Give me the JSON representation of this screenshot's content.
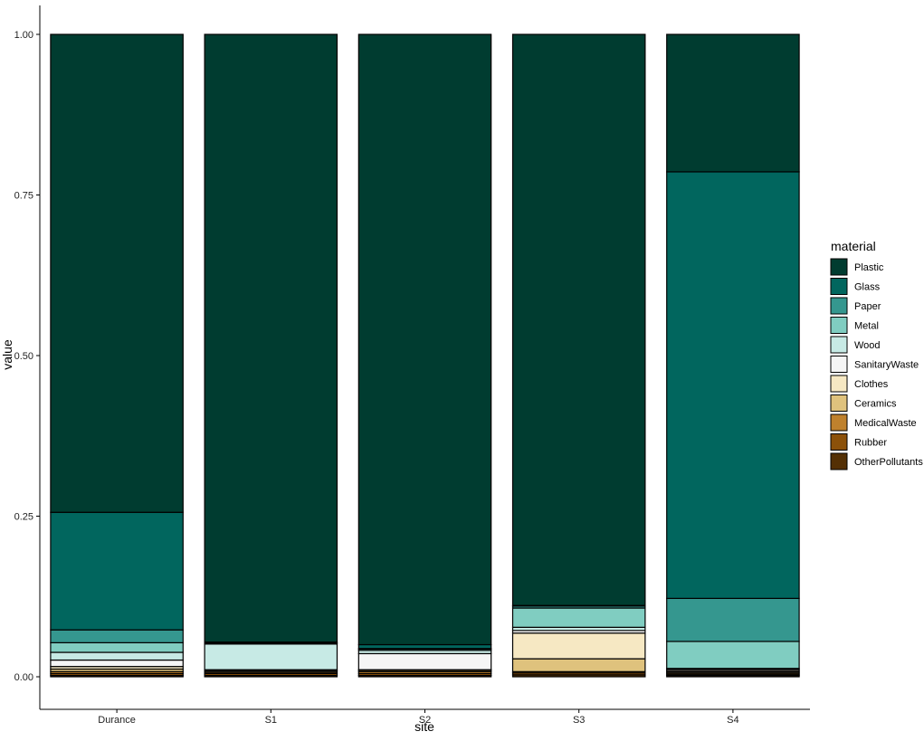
{
  "chart_data": {
    "type": "bar",
    "stacked": true,
    "title": "",
    "xlabel": "site",
    "ylabel": "value",
    "ylim": [
      0,
      1.05
    ],
    "yticks": [
      "0.00",
      "0.25",
      "0.50",
      "0.75",
      "1.00"
    ],
    "ytick_values": [
      0,
      0.25,
      0.5,
      0.75,
      1.0
    ],
    "grid": false,
    "legend_title": "material",
    "legend_position": "right",
    "categories": [
      "Durance",
      "S1",
      "S2",
      "S3",
      "S4"
    ],
    "series": [
      {
        "name": "OtherPollutants",
        "color": "#543005",
        "values": [
          0.002,
          0.002,
          0.002,
          0.003,
          0.002
        ]
      },
      {
        "name": "Rubber",
        "color": "#8c510a",
        "values": [
          0.003,
          0.003,
          0.003,
          0.003,
          0.002
        ]
      },
      {
        "name": "MedicalWaste",
        "color": "#bf812d",
        "values": [
          0.003,
          0.002,
          0.003,
          0.002,
          0.002
        ]
      },
      {
        "name": "Ceramics",
        "color": "#dfc27d",
        "values": [
          0.004,
          0.002,
          0.002,
          0.02,
          0.002
        ]
      },
      {
        "name": "Clothes",
        "color": "#f6e8c3",
        "values": [
          0.004,
          0.001,
          0.001,
          0.04,
          0.002
        ]
      },
      {
        "name": "SanitaryWaste",
        "color": "#f5f5f5",
        "values": [
          0.01,
          0.001,
          0.025,
          0.004,
          0.002
        ]
      },
      {
        "name": "Wood",
        "color": "#c7eae5",
        "values": [
          0.012,
          0.04,
          0.005,
          0.005,
          0.001
        ]
      },
      {
        "name": "Metal",
        "color": "#80cdc1",
        "values": [
          0.015,
          0.001,
          0.002,
          0.03,
          0.042
        ]
      },
      {
        "name": "Paper",
        "color": "#35978f",
        "values": [
          0.02,
          0.001,
          0.001,
          0.003,
          0.067
        ]
      },
      {
        "name": "Glass",
        "color": "#01665e",
        "values": [
          0.183,
          0.001,
          0.006,
          0.001,
          0.664
        ]
      },
      {
        "name": "Plastic",
        "color": "#003c30",
        "values": [
          0.744,
          0.946,
          0.95,
          0.889,
          0.214
        ]
      }
    ]
  }
}
